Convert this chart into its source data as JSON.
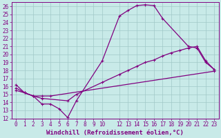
{
  "xlabel": "Windchill (Refroidissement éolien,°C)",
  "bg_color": "#c8eae8",
  "line_color": "#800080",
  "grid_color": "#a0c8c8",
  "xlim": [
    -0.5,
    23.5
  ],
  "ylim": [
    12,
    26.5
  ],
  "xticks": [
    0,
    1,
    2,
    3,
    4,
    5,
    6,
    7,
    8,
    9,
    10,
    12,
    13,
    14,
    15,
    16,
    17,
    18,
    19,
    20,
    21,
    22,
    23
  ],
  "yticks": [
    12,
    13,
    14,
    15,
    16,
    17,
    18,
    19,
    20,
    21,
    22,
    23,
    24,
    25,
    26
  ],
  "line1_x": [
    0,
    1,
    2,
    3,
    4,
    5,
    6,
    7,
    10,
    12,
    13,
    14,
    15,
    16,
    17,
    20,
    21,
    22,
    23
  ],
  "line1_y": [
    16.2,
    15.2,
    14.8,
    13.8,
    13.8,
    13.2,
    12.1,
    14.2,
    19.2,
    24.8,
    25.5,
    26.1,
    26.2,
    26.1,
    24.5,
    21.0,
    20.8,
    19.0,
    18.1
  ],
  "line2_x": [
    0,
    1,
    2,
    3,
    6,
    7,
    10,
    12,
    13,
    14,
    15,
    16,
    17,
    18,
    19,
    20,
    21,
    22,
    23
  ],
  "line2_y": [
    15.8,
    15.2,
    14.8,
    14.5,
    14.2,
    15.0,
    16.5,
    17.5,
    18.0,
    18.5,
    19.0,
    19.3,
    19.8,
    20.2,
    20.5,
    20.8,
    21.0,
    19.2,
    18.1
  ],
  "line3_x": [
    0,
    1,
    2,
    3,
    4,
    23
  ],
  "line3_y": [
    15.5,
    15.2,
    14.8,
    14.8,
    14.8,
    17.9
  ],
  "markersize": 3,
  "linewidth": 0.9,
  "fontsize_label": 6.5,
  "fontsize_tick": 5.5
}
